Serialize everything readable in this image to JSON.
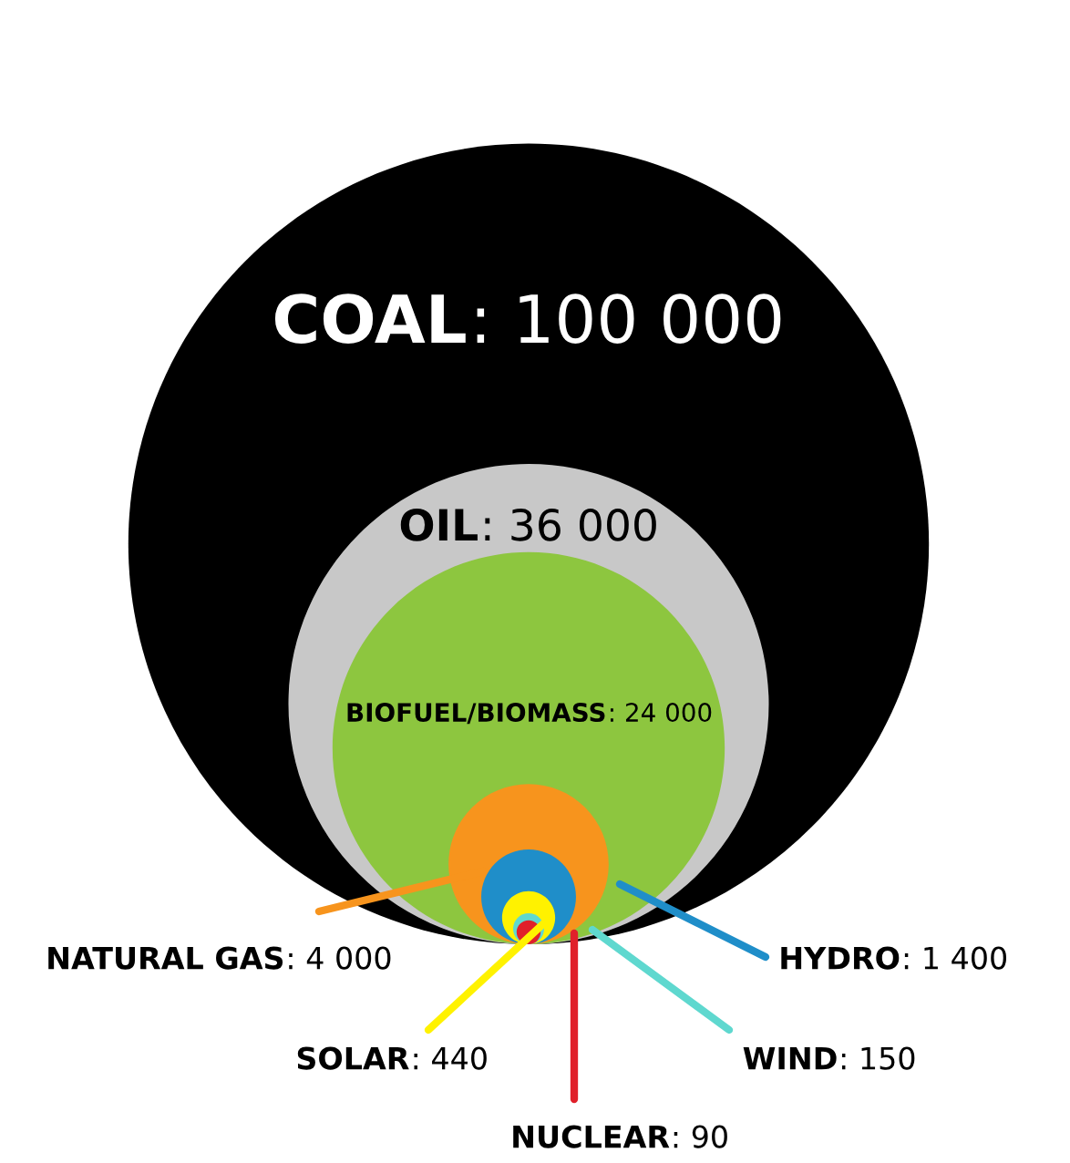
{
  "chart_data": {
    "type": "other",
    "categories": [
      "COAL",
      "OIL",
      "BIOFUEL/BIOMASS",
      "NATURAL GAS",
      "HYDRO",
      "SOLAR",
      "WIND",
      "NUCLEAR"
    ],
    "values": [
      100000,
      36000,
      24000,
      4000,
      1400,
      440,
      150,
      90
    ],
    "value_labels": [
      ": 100 000",
      ": 36 000",
      ": 24 000",
      ": 4 000",
      ": 1 400",
      ": 440",
      ": 150",
      ": 90"
    ],
    "colors": [
      "#000000",
      "#c8c8c8",
      "#8dc63f",
      "#f7941d",
      "#1f8ec9",
      "#fff200",
      "#5fd8cf",
      "#e0202a"
    ]
  }
}
